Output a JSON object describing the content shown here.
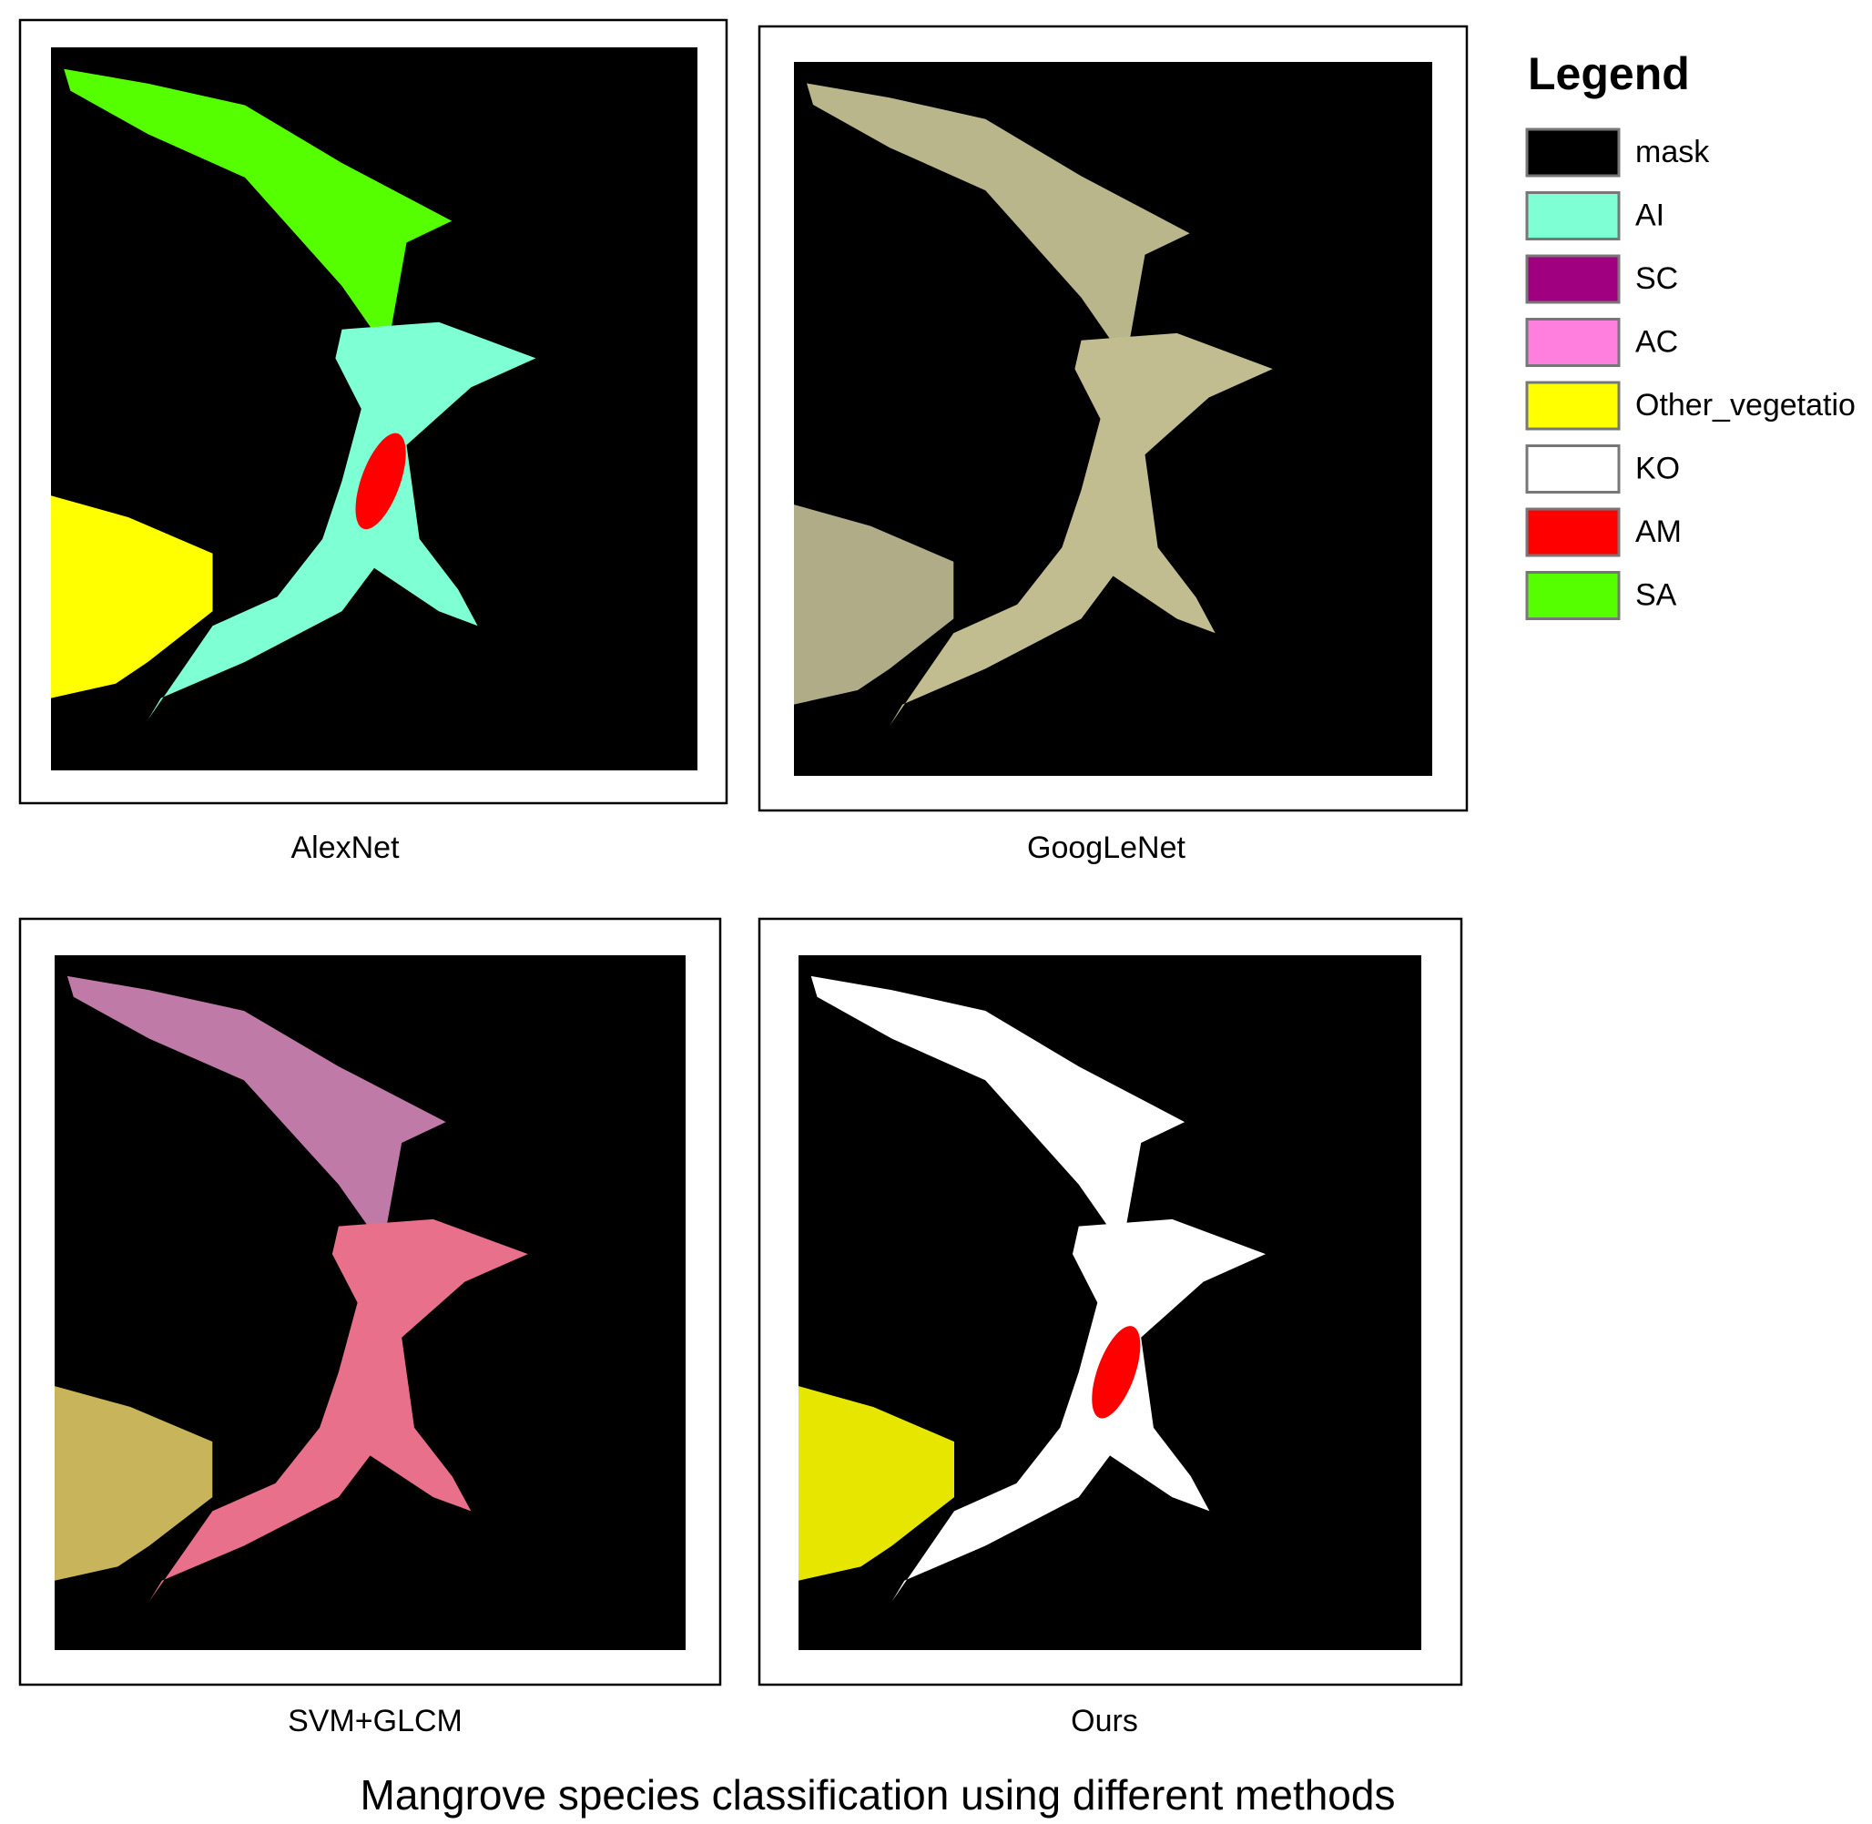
{
  "title": "Mangrove species classification using different methods",
  "panels": [
    {
      "caption": "AlexNet"
    },
    {
      "caption": "GoogLeNet"
    },
    {
      "caption": "SVM+GLCM"
    },
    {
      "caption": "Ours"
    }
  ],
  "legend": {
    "title": "Legend",
    "items": [
      {
        "label": "mask",
        "color": "#000000"
      },
      {
        "label": "AI",
        "color": "#7fffd4"
      },
      {
        "label": "SC",
        "color": "#a0007f"
      },
      {
        "label": "AC",
        "color": "#ff7fdf"
      },
      {
        "label": "Other_vegetatio",
        "color": "#ffff00"
      },
      {
        "label": "KO",
        "color": "#ffffff"
      },
      {
        "label": "AM",
        "color": "#ff0000"
      },
      {
        "label": "SA",
        "color": "#55ff00"
      }
    ]
  }
}
